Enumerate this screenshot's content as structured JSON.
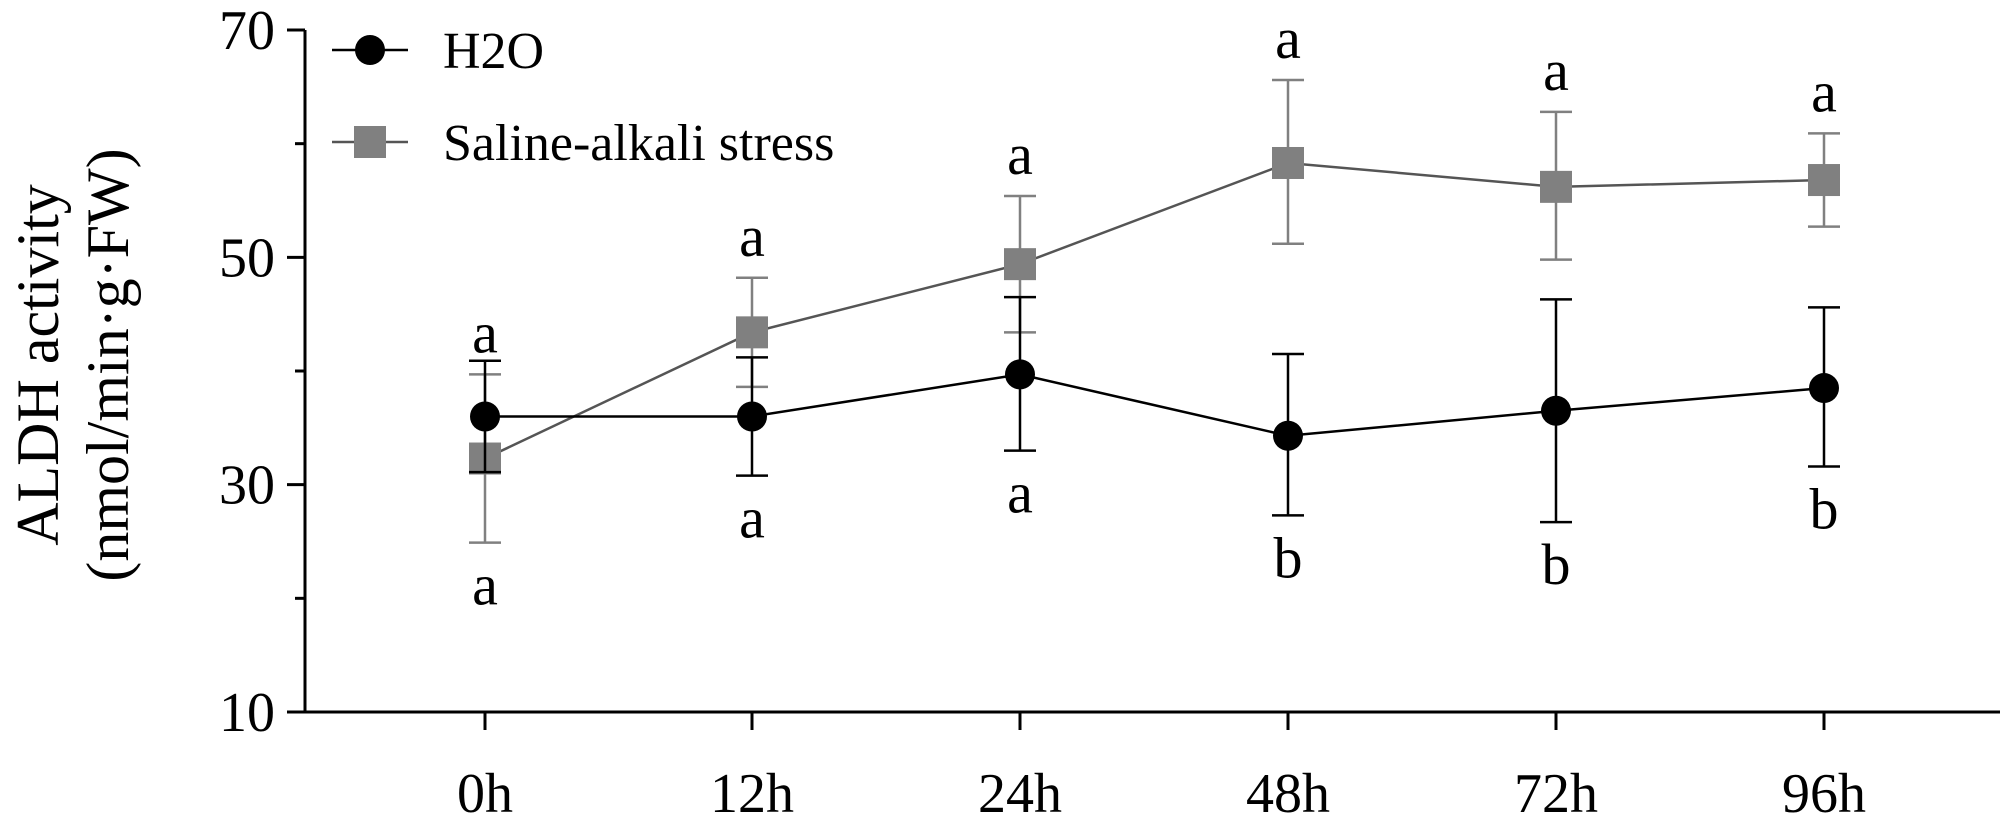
{
  "chart_data": {
    "type": "line",
    "ylabel_line1": "ALDH activity",
    "ylabel_line2": "(nmol/min·g·FW)",
    "ylim": [
      10,
      70
    ],
    "yticks": [
      "70",
      "50",
      "30",
      "10"
    ],
    "categories": [
      "0h",
      "12h",
      "24h",
      "48h",
      "72h",
      "96h"
    ],
    "legend_position": "top-left",
    "grid": false,
    "series": [
      {
        "name": "H2O",
        "marker": "circle",
        "color": "#000000",
        "values": [
          36,
          36,
          39.7,
          34.3,
          36.5,
          38.5
        ],
        "err_upper": [
          40.9,
          41.2,
          46.5,
          41.5,
          46.3,
          45.6
        ],
        "err_lower": [
          31.1,
          30.8,
          33.0,
          27.3,
          26.7,
          31.6
        ],
        "letters": [
          "a",
          "a",
          "a",
          "b",
          "b",
          "b"
        ]
      },
      {
        "name": "Saline-alkali stress",
        "marker": "square",
        "color": "#808080",
        "values": [
          32.3,
          43.4,
          49.4,
          58.3,
          56.2,
          56.8
        ],
        "err_upper": [
          39.7,
          48.2,
          55.4,
          65.6,
          62.8,
          60.9
        ],
        "err_lower": [
          24.9,
          38.6,
          43.4,
          51.2,
          49.8,
          52.7
        ],
        "letters": [
          "a",
          "a",
          "a",
          "a",
          "a",
          "a"
        ]
      }
    ]
  }
}
